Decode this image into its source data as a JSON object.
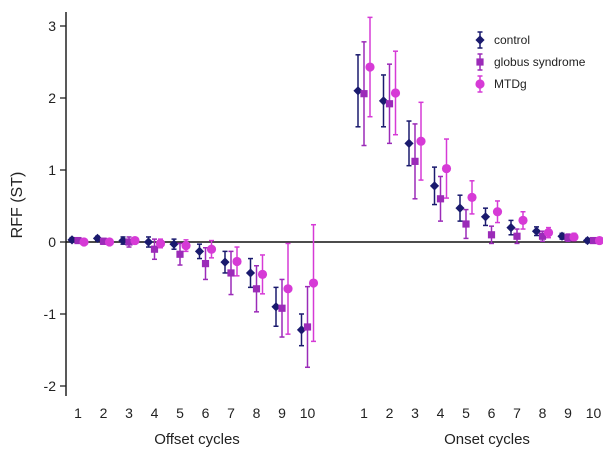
{
  "chart_data": {
    "type": "scatter",
    "title": "",
    "ylabel": "RFF (ST)",
    "ylim": [
      -2.0,
      3.0
    ],
    "yticks": [
      {
        "value": -2,
        "label": "-2"
      },
      {
        "value": -1,
        "label": "-1"
      },
      {
        "value": 0,
        "label": "0"
      },
      {
        "value": 1,
        "label": "1"
      },
      {
        "value": 2,
        "label": "2"
      },
      {
        "value": 3,
        "label": "3"
      }
    ],
    "groups": [
      {
        "label": "Offset cycles",
        "cycles": [
          "1",
          "2",
          "3",
          "4",
          "5",
          "6",
          "7",
          "8",
          "9",
          "10"
        ]
      },
      {
        "label": "Onset cycles",
        "cycles": [
          "1",
          "2",
          "3",
          "4",
          "5",
          "6",
          "7",
          "8",
          "9",
          "10"
        ]
      }
    ],
    "zero_line": true,
    "legend_position": "top-right",
    "series": [
      {
        "name": "control",
        "marker": "diamond",
        "color": "#1a1a6e",
        "offset_values": [
          0.03,
          0.05,
          0.02,
          0.0,
          -0.03,
          -0.13,
          -0.28,
          -0.43,
          -0.9,
          -1.22
        ],
        "offset_err": [
          0.03,
          0.03,
          0.05,
          0.07,
          0.07,
          0.1,
          0.15,
          0.2,
          0.27,
          0.22
        ],
        "onset_values": [
          2.1,
          1.96,
          1.37,
          0.78,
          0.47,
          0.35,
          0.2,
          0.15,
          0.08,
          0.02
        ],
        "onset_err": [
          0.5,
          0.36,
          0.31,
          0.26,
          0.18,
          0.12,
          0.1,
          0.06,
          0.04,
          0.03
        ]
      },
      {
        "name": "globus syndrome",
        "marker": "square",
        "color": "#9b2bb8",
        "offset_values": [
          0.02,
          0.01,
          0.0,
          -0.1,
          -0.17,
          -0.3,
          -0.43,
          -0.65,
          -0.92,
          -1.18
        ],
        "offset_err": [
          0.03,
          0.04,
          0.07,
          0.14,
          0.15,
          0.22,
          0.3,
          0.32,
          0.4,
          0.56
        ],
        "onset_values": [
          2.06,
          1.92,
          1.12,
          0.6,
          0.25,
          0.1,
          0.08,
          0.08,
          0.06,
          0.02
        ],
        "onset_err": [
          0.72,
          0.55,
          0.52,
          0.31,
          0.2,
          0.12,
          0.1,
          0.07,
          0.05,
          0.03
        ]
      },
      {
        "name": "MTDg",
        "marker": "circle",
        "color": "#d63ad6",
        "offset_values": [
          0.0,
          0.0,
          0.02,
          -0.02,
          -0.05,
          -0.1,
          -0.27,
          -0.45,
          -0.65,
          -0.57
        ],
        "offset_err": [
          0.02,
          0.03,
          0.04,
          0.06,
          0.08,
          0.12,
          0.2,
          0.27,
          0.63,
          0.81
        ],
        "onset_values": [
          2.43,
          2.07,
          1.4,
          1.02,
          0.62,
          0.42,
          0.3,
          0.13,
          0.07,
          0.02
        ],
        "onset_err": [
          0.69,
          0.58,
          0.54,
          0.41,
          0.23,
          0.15,
          0.12,
          0.07,
          0.05,
          0.03
        ]
      }
    ]
  }
}
